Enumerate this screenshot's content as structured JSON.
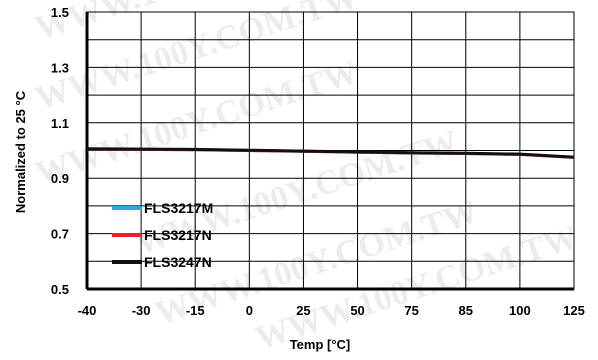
{
  "watermark": "WWW.100Y.COM.TW",
  "chart_data": {
    "type": "line",
    "xlabel": "Temp [°C]",
    "ylabel": "Normalized to 25 °C",
    "x_categories": [
      "-40",
      "-30",
      "-15",
      "0",
      "25",
      "50",
      "75",
      "85",
      "100",
      "125"
    ],
    "y_ticks": [
      "1.5",
      "1.3",
      "1.1",
      "0.9",
      "0.7",
      "0.5"
    ],
    "y_tick_values": [
      1.5,
      1.3,
      1.1,
      0.9,
      0.7,
      0.5
    ],
    "ylim": [
      0.5,
      1.5
    ],
    "grid": true,
    "legend_position": "bottom-left",
    "series": [
      {
        "name": "FLS3217M",
        "color": "#29a8e0",
        "values": [
          1.005,
          1.004,
          1.003,
          1.0,
          0.997,
          0.994,
          0.991,
          0.989,
          0.986,
          0.975
        ]
      },
      {
        "name": "FLS3217N",
        "color": "#e8202a",
        "values": [
          1.005,
          1.004,
          1.003,
          1.0,
          0.997,
          0.994,
          0.991,
          0.989,
          0.986,
          0.975
        ]
      },
      {
        "name": "FLS3247N",
        "color": "#111111",
        "values": [
          1.006,
          1.005,
          1.004,
          1.001,
          0.998,
          0.995,
          0.992,
          0.99,
          0.987,
          0.976
        ]
      }
    ]
  }
}
